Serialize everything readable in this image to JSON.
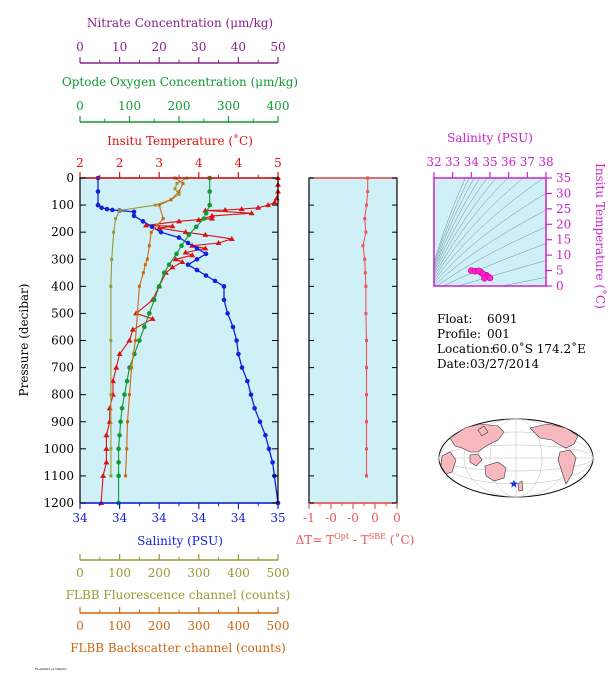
{
  "colors": {
    "nitrate": "#882288",
    "oxygen": "#119933",
    "temperature": "#dd1111",
    "salinity": "#1122dd",
    "delta_t": "#ee5555",
    "fluorescence": "#999933",
    "backscatter": "#cc6611",
    "ts_axis": "#cc22cc",
    "plot_bg": "#d0f0f8",
    "axis": "#000000"
  },
  "axes": {
    "nitrate": {
      "label": "Nitrate Concentration (μm/kg)",
      "ticks": [
        "0",
        "10",
        "20",
        "30",
        "40",
        "50"
      ]
    },
    "oxygen": {
      "label": "Optode Oxygen Concentration (μm/kg)",
      "ticks": [
        "0",
        "100",
        "200",
        "300",
        "400"
      ]
    },
    "temperature": {
      "label": "Insitu Temperature (˚C)",
      "ticks": [
        "2",
        "2",
        "3",
        "4",
        "4",
        "5"
      ]
    },
    "salinity": {
      "label": "Salinity (PSU)",
      "ticks": [
        "34",
        "34",
        "34",
        "34",
        "34",
        "35"
      ]
    },
    "pressure": {
      "label": "Pressure (decibar)",
      "ticks": [
        "0",
        "100",
        "200",
        "300",
        "400",
        "500",
        "600",
        "700",
        "800",
        "900",
        "1000",
        "1100",
        "1200"
      ]
    },
    "delta_t": {
      "label": "ΔT= T",
      "sup1": "Opt",
      "mid": " - T",
      "sup2": "SBE",
      "unit": " (˚C)",
      "ticks": [
        "-1",
        "-0",
        "-0",
        "0",
        "0"
      ]
    },
    "fluorescence": {
      "label": "FLBB Fluorescence channel (counts)",
      "ticks": [
        "0",
        "100",
        "200",
        "300",
        "400",
        "500"
      ]
    },
    "backscatter": {
      "label": "FLBB Backscatter channel (counts)",
      "ticks": [
        "0",
        "100",
        "200",
        "300",
        "400",
        "500"
      ]
    },
    "ts_salinity": {
      "label": "Salinity (PSU)",
      "ticks": [
        "32",
        "33",
        "34",
        "35",
        "36",
        "37",
        "38"
      ]
    },
    "ts_temperature": {
      "label": "Insitu Temperature (˚C)",
      "ticks": [
        "35",
        "30",
        "25",
        "20",
        "15",
        "10",
        "5",
        "0"
      ]
    }
  },
  "info": {
    "float_label": "Float:",
    "float_value": "6091",
    "profile_label": "Profile:",
    "profile_value": "001",
    "location_label": "Location:",
    "location_value": "60.0˚S  174.2˚E",
    "date_label": "Date:",
    "date_value": "03/27/2014"
  },
  "footer_note": "Float6091 profile001",
  "chart_data": {
    "type": "line",
    "x_unit": "pressure (decibar)",
    "y_range": [
      0,
      1200
    ],
    "series": [
      {
        "key": "temperature",
        "name": "Insitu Temperature (˚C)",
        "xlim": [
          2,
          5
        ],
        "points": [
          [
            5.0,
            0
          ],
          [
            5.0,
            25
          ],
          [
            5.0,
            50
          ],
          [
            4.98,
            75
          ],
          [
            4.95,
            90
          ],
          [
            4.85,
            100
          ],
          [
            4.7,
            110
          ],
          [
            4.45,
            115
          ],
          [
            4.2,
            118
          ],
          [
            3.9,
            120
          ],
          [
            4.6,
            130
          ],
          [
            4.0,
            140
          ],
          [
            3.8,
            155
          ],
          [
            4.0,
            150
          ],
          [
            3.5,
            160
          ],
          [
            3.0,
            175
          ],
          [
            3.4,
            178
          ],
          [
            3.2,
            185
          ],
          [
            3.6,
            200
          ],
          [
            3.9,
            210
          ],
          [
            4.3,
            225
          ],
          [
            4.1,
            240
          ],
          [
            3.7,
            250
          ],
          [
            3.9,
            260
          ],
          [
            3.6,
            275
          ],
          [
            3.7,
            285
          ],
          [
            3.45,
            300
          ],
          [
            3.55,
            310
          ],
          [
            3.4,
            330
          ],
          [
            3.3,
            350
          ],
          [
            3.2,
            400
          ],
          [
            3.1,
            450
          ],
          [
            2.85,
            500
          ],
          [
            3.1,
            520
          ],
          [
            2.8,
            560
          ],
          [
            2.75,
            600
          ],
          [
            2.6,
            650
          ],
          [
            2.55,
            700
          ],
          [
            2.5,
            750
          ],
          [
            2.5,
            800
          ],
          [
            2.45,
            850
          ],
          [
            2.45,
            900
          ],
          [
            2.4,
            950
          ],
          [
            2.4,
            1000
          ],
          [
            2.4,
            1050
          ],
          [
            2.35,
            1100
          ],
          [
            2.32,
            1200
          ]
        ]
      },
      {
        "key": "salinity",
        "name": "Salinity (PSU)",
        "xlim": [
          33.9,
          35.0
        ],
        "points": [
          [
            34.0,
            0
          ],
          [
            34.0,
            50
          ],
          [
            34.0,
            100
          ],
          [
            34.02,
            110
          ],
          [
            34.05,
            115
          ],
          [
            34.08,
            118
          ],
          [
            34.12,
            120
          ],
          [
            34.2,
            125
          ],
          [
            34.2,
            140
          ],
          [
            34.25,
            160
          ],
          [
            34.3,
            180
          ],
          [
            34.35,
            200
          ],
          [
            34.45,
            220
          ],
          [
            34.5,
            240
          ],
          [
            34.55,
            260
          ],
          [
            34.6,
            280
          ],
          [
            34.55,
            300
          ],
          [
            34.5,
            320
          ],
          [
            34.55,
            340
          ],
          [
            34.6,
            360
          ],
          [
            34.65,
            380
          ],
          [
            34.7,
            400
          ],
          [
            34.7,
            450
          ],
          [
            34.72,
            500
          ],
          [
            34.75,
            550
          ],
          [
            34.77,
            600
          ],
          [
            34.78,
            650
          ],
          [
            34.8,
            700
          ],
          [
            34.83,
            750
          ],
          [
            34.85,
            800
          ],
          [
            34.87,
            850
          ],
          [
            34.9,
            900
          ],
          [
            34.93,
            950
          ],
          [
            34.95,
            1000
          ],
          [
            34.97,
            1050
          ],
          [
            34.98,
            1100
          ],
          [
            35.0,
            1200
          ]
        ]
      },
      {
        "key": "oxygen",
        "name": "Optode Oxygen Concentration (μm/kg)",
        "xlim": [
          0,
          400
        ],
        "points": [
          [
            262,
            0
          ],
          [
            262,
            50
          ],
          [
            262,
            100
          ],
          [
            255,
            130
          ],
          [
            250,
            150
          ],
          [
            235,
            180
          ],
          [
            220,
            210
          ],
          [
            205,
            250
          ],
          [
            195,
            280
          ],
          [
            180,
            320
          ],
          [
            170,
            350
          ],
          [
            160,
            400
          ],
          [
            150,
            450
          ],
          [
            140,
            500
          ],
          [
            130,
            550
          ],
          [
            120,
            600
          ],
          [
            110,
            650
          ],
          [
            100,
            700
          ],
          [
            95,
            750
          ],
          [
            90,
            800
          ],
          [
            85,
            850
          ],
          [
            82,
            900
          ],
          [
            80,
            950
          ],
          [
            78,
            1000
          ],
          [
            78,
            1050
          ],
          [
            78,
            1100
          ],
          [
            78,
            1200
          ]
        ]
      },
      {
        "key": "fluorescence",
        "name": "FLBB Fluorescence channel (counts)",
        "xlim": [
          0,
          500
        ],
        "points": [
          [
            270,
            0
          ],
          [
            245,
            20
          ],
          [
            240,
            40
          ],
          [
            250,
            60
          ],
          [
            230,
            80
          ],
          [
            190,
            100
          ],
          [
            100,
            120
          ],
          [
            90,
            150
          ],
          [
            85,
            200
          ],
          [
            80,
            300
          ],
          [
            78,
            400
          ],
          [
            78,
            600
          ],
          [
            78,
            800
          ],
          [
            78,
            1000
          ],
          [
            78,
            1100
          ]
        ]
      },
      {
        "key": "backscatter",
        "name": "FLBB Backscatter channel (counts)",
        "xlim": [
          0,
          500
        ],
        "points": [
          [
            240,
            0
          ],
          [
            260,
            20
          ],
          [
            250,
            50
          ],
          [
            230,
            80
          ],
          [
            200,
            100
          ],
          [
            210,
            150
          ],
          [
            180,
            200
          ],
          [
            175,
            250
          ],
          [
            170,
            300
          ],
          [
            165,
            320
          ],
          [
            160,
            350
          ],
          [
            150,
            400
          ],
          [
            145,
            500
          ],
          [
            140,
            600
          ],
          [
            130,
            700
          ],
          [
            125,
            800
          ],
          [
            120,
            900
          ],
          [
            118,
            1000
          ],
          [
            115,
            1100
          ]
        ]
      },
      {
        "key": "delta_t",
        "name": "ΔT",
        "xlim": [
          -1,
          0.5
        ],
        "points": [
          [
            0.0,
            0
          ],
          [
            0.0,
            50
          ],
          [
            -0.02,
            100
          ],
          [
            -0.05,
            150
          ],
          [
            -0.03,
            200
          ],
          [
            -0.08,
            250
          ],
          [
            -0.05,
            300
          ],
          [
            -0.04,
            350
          ],
          [
            -0.03,
            400
          ],
          [
            -0.03,
            500
          ],
          [
            -0.02,
            600
          ],
          [
            -0.02,
            700
          ],
          [
            -0.02,
            800
          ],
          [
            -0.02,
            900
          ],
          [
            -0.02,
            1000
          ],
          [
            -0.02,
            1100
          ]
        ]
      }
    ],
    "ts_diagram": {
      "xlim": [
        32,
        38
      ],
      "ylim": [
        0,
        35
      ],
      "points": [
        [
          34.0,
          5.0
        ],
        [
          34.2,
          4.8
        ],
        [
          34.5,
          4.5
        ],
        [
          34.8,
          3.5
        ],
        [
          34.6,
          4.0
        ],
        [
          34.9,
          3.0
        ],
        [
          34.7,
          2.5
        ],
        [
          35.0,
          2.6
        ],
        [
          34.4,
          4.9
        ]
      ]
    },
    "map": {
      "marker_lat": -60.0,
      "marker_lon": 174.2
    }
  }
}
